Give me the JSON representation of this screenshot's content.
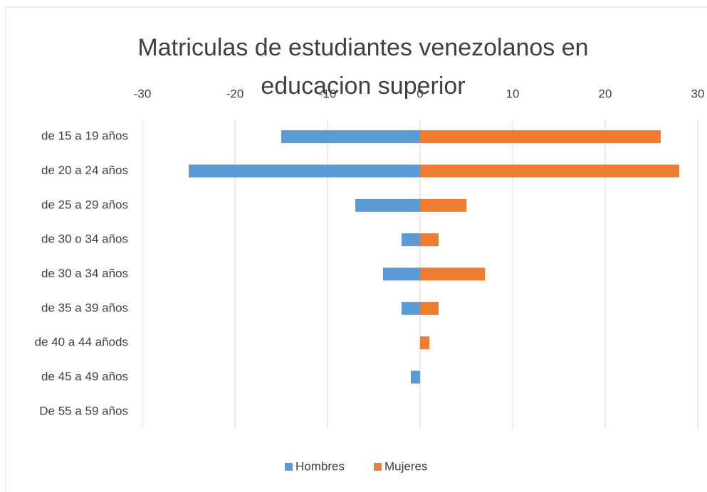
{
  "chart_data": {
    "type": "bar",
    "orientation": "horizontal",
    "title": "Matriculas de estudiantes venezolanos en educacion superior",
    "categories": [
      "de 15 a 19 años",
      "de 20 a 24 años",
      "de 25 a 29 años",
      "de 30 o 34 años",
      "de 30 a 34 años",
      "de 35 a 39 años",
      "de 40 a 44 añods",
      "de 45 a 49 años",
      "De 55 a 59 años"
    ],
    "series": [
      {
        "name": "Hombres",
        "color": "#5b9bd5",
        "values": [
          -15,
          -25,
          -7,
          -2,
          -4,
          -2,
          0,
          -1,
          0
        ]
      },
      {
        "name": "Mujeres",
        "color": "#ed7d31",
        "values": [
          26,
          28,
          5,
          2,
          7,
          2,
          1,
          0,
          0
        ]
      }
    ],
    "xlim": [
      -30,
      30
    ],
    "xticks": [
      -30,
      -20,
      -10,
      0,
      10,
      20,
      30
    ],
    "grid": true,
    "legend": "bottom"
  }
}
